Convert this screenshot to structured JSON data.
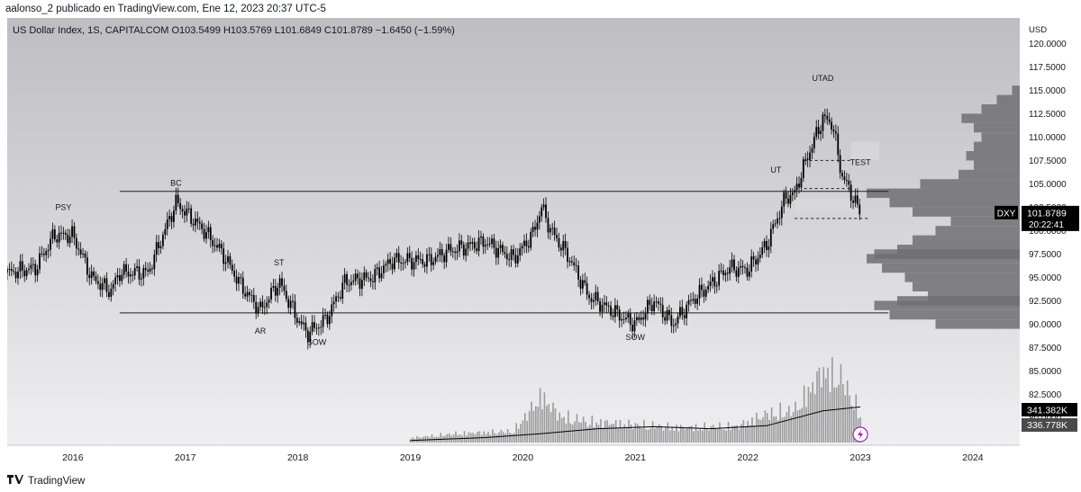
{
  "header": {
    "published_text": "aalonso_2 publicado en TradingView.com, Ene 12, 2023 20:37 UTC-5"
  },
  "legend": {
    "text": "US Dollar Index, 1S, CAPITALCOM  O103.5499  H103.5769  L101.6849  C101.8789  −1.6450 (−1.59%)"
  },
  "footer": {
    "brand": "TradingView"
  },
  "colors": {
    "background_top": "#bfbfc4",
    "background_bottom": "#ededf0",
    "candle": "#000000",
    "volume_bar": "#9a9a9a",
    "volume_ma": "#000000",
    "profile": "#6e6e73",
    "zone": "#d8d8dc"
  },
  "chart_data": {
    "type": "candlestick",
    "symbol": "DXY",
    "y_axis_unit": "USD",
    "ylim": [
      78.5,
      121
    ],
    "x_range": [
      "2015-06",
      "2024-06"
    ],
    "x_ticks": [
      "2016",
      "2017",
      "2018",
      "2019",
      "2020",
      "2021",
      "2022",
      "2023",
      "2024"
    ],
    "y_ticks": [
      "80.0000",
      "82.5000",
      "85.0000",
      "87.5000",
      "90.0000",
      "92.5000",
      "95.0000",
      "97.5000",
      "100.0000",
      "102.5000",
      "105.0000",
      "107.5000",
      "110.0000",
      "112.5000",
      "115.0000",
      "117.5000",
      "120.0000"
    ],
    "last_price_label": "101.8789",
    "countdown_label": "20:22:41",
    "volume_labels": [
      "341.382K",
      "336.778K"
    ],
    "price_path": [
      [
        "2015-06",
        95.5
      ],
      [
        "2015-09",
        96.0
      ],
      [
        "2015-11",
        99.5
      ],
      [
        "2016-01",
        99.5
      ],
      [
        "2016-03",
        95.0
      ],
      [
        "2016-05",
        93.5
      ],
      [
        "2016-06",
        95.5
      ],
      [
        "2016-09",
        95.5
      ],
      [
        "2016-11",
        100.5
      ],
      [
        "2016-12",
        103.0
      ],
      [
        "2017-01",
        102.0
      ],
      [
        "2017-03",
        100.0
      ],
      [
        "2017-05",
        97.5
      ],
      [
        "2017-07",
        94.0
      ],
      [
        "2017-09",
        91.5
      ],
      [
        "2017-11",
        94.5
      ],
      [
        "2018-01",
        90.5
      ],
      [
        "2018-02",
        89.0
      ],
      [
        "2018-04",
        90.5
      ],
      [
        "2018-06",
        94.5
      ],
      [
        "2018-09",
        95.0
      ],
      [
        "2018-11",
        96.8
      ],
      [
        "2019-03",
        96.8
      ],
      [
        "2019-05",
        97.8
      ],
      [
        "2019-09",
        98.8
      ],
      [
        "2019-12",
        97.0
      ],
      [
        "2020-02",
        99.5
      ],
      [
        "2020-03",
        102.5
      ],
      [
        "2020-04",
        100.0
      ],
      [
        "2020-06",
        97.0
      ],
      [
        "2020-08",
        93.0
      ],
      [
        "2020-12",
        90.5
      ],
      [
        "2021-01",
        90.0
      ],
      [
        "2021-03",
        92.5
      ],
      [
        "2021-05",
        90.0
      ],
      [
        "2021-07",
        92.5
      ],
      [
        "2021-11",
        96.0
      ],
      [
        "2022-01",
        95.8
      ],
      [
        "2022-03",
        98.5
      ],
      [
        "2022-05",
        103.5
      ],
      [
        "2022-06",
        104.0
      ],
      [
        "2022-07",
        107.0
      ],
      [
        "2022-09",
        112.0
      ],
      [
        "2022-10",
        111.5
      ],
      [
        "2022-11",
        106.0
      ],
      [
        "2022-12",
        104.0
      ],
      [
        "2023-01",
        101.8
      ]
    ],
    "volume": {
      "start": "2019-01",
      "ylim": [
        0,
        1000
      ],
      "points": [
        [
          "2019-01",
          60
        ],
        [
          "2019-06",
          120
        ],
        [
          "2019-12",
          150
        ],
        [
          "2020-03",
          620
        ],
        [
          "2020-05",
          350
        ],
        [
          "2020-08",
          280
        ],
        [
          "2021-01",
          240
        ],
        [
          "2021-06",
          200
        ],
        [
          "2021-12",
          220
        ],
        [
          "2022-03",
          380
        ],
        [
          "2022-06",
          430
        ],
        [
          "2022-09",
          950
        ],
        [
          "2022-11",
          850
        ],
        [
          "2023-01",
          380
        ]
      ],
      "ma_points": [
        [
          "2019-01",
          20
        ],
        [
          "2019-09",
          50
        ],
        [
          "2020-03",
          90
        ],
        [
          "2020-09",
          140
        ],
        [
          "2021-03",
          160
        ],
        [
          "2021-09",
          140
        ],
        [
          "2022-03",
          170
        ],
        [
          "2022-09",
          320
        ],
        [
          "2023-01",
          360
        ]
      ]
    },
    "annotations": [
      {
        "text": "PSY",
        "date": "2015-12",
        "price": 102.2
      },
      {
        "text": "BC",
        "date": "2016-12",
        "price": 104.8
      },
      {
        "text": "ST",
        "date": "2017-11",
        "price": 96.3
      },
      {
        "text": "AR",
        "date": "2017-09",
        "price": 89.0
      },
      {
        "text": "SOW",
        "date": "2018-03",
        "price": 87.8
      },
      {
        "text": "SOW",
        "date": "2021-01",
        "price": 88.3
      },
      {
        "text": "UT",
        "date": "2022-04",
        "price": 106.2
      },
      {
        "text": "UTAD",
        "date": "2022-09",
        "price": 116.0
      },
      {
        "text": "TEST",
        "date": "2023-01",
        "price": 107.0
      }
    ],
    "lines": [
      {
        "from": [
          "2016-06",
          104.2
        ],
        "to": [
          "2023-04",
          104.2
        ]
      },
      {
        "from": [
          "2016-06",
          91.2
        ],
        "to": [
          "2023-04",
          91.2
        ]
      }
    ],
    "dashed_lines": [
      {
        "from": [
          "2022-06",
          101.3
        ],
        "to": [
          "2023-02",
          101.3
        ]
      },
      {
        "from": [
          "2022-07",
          104.5
        ],
        "to": [
          "2022-12",
          104.5
        ]
      },
      {
        "from": [
          "2022-07",
          107.5
        ],
        "to": [
          "2022-12",
          107.5
        ]
      }
    ],
    "zones": [
      {
        "from": [
          "2022-06",
          103.5
        ],
        "to": [
          "2023-01",
          102.0
        ]
      },
      {
        "from": [
          "2022-12",
          109.5
        ],
        "to": [
          "2023-03",
          107.5
        ]
      }
    ],
    "volume_profile": [
      [
        90,
        0.55
      ],
      [
        91,
        0.85
      ],
      [
        92,
        0.95
      ],
      [
        92.5,
        0.8
      ],
      [
        93,
        0.6
      ],
      [
        94,
        0.7
      ],
      [
        95,
        0.75
      ],
      [
        96,
        0.9
      ],
      [
        97,
        1.0
      ],
      [
        97.5,
        0.95
      ],
      [
        98,
        0.8
      ],
      [
        99,
        0.7
      ],
      [
        100,
        0.55
      ],
      [
        101,
        0.45
      ],
      [
        102,
        0.7
      ],
      [
        103,
        0.85
      ],
      [
        104,
        1.0
      ],
      [
        105,
        0.65
      ],
      [
        106,
        0.4
      ],
      [
        107,
        0.3
      ],
      [
        108,
        0.35
      ],
      [
        109,
        0.3
      ],
      [
        110,
        0.25
      ],
      [
        111,
        0.3
      ],
      [
        112,
        0.38
      ],
      [
        113,
        0.25
      ],
      [
        114,
        0.15
      ],
      [
        115,
        0.05
      ]
    ]
  }
}
